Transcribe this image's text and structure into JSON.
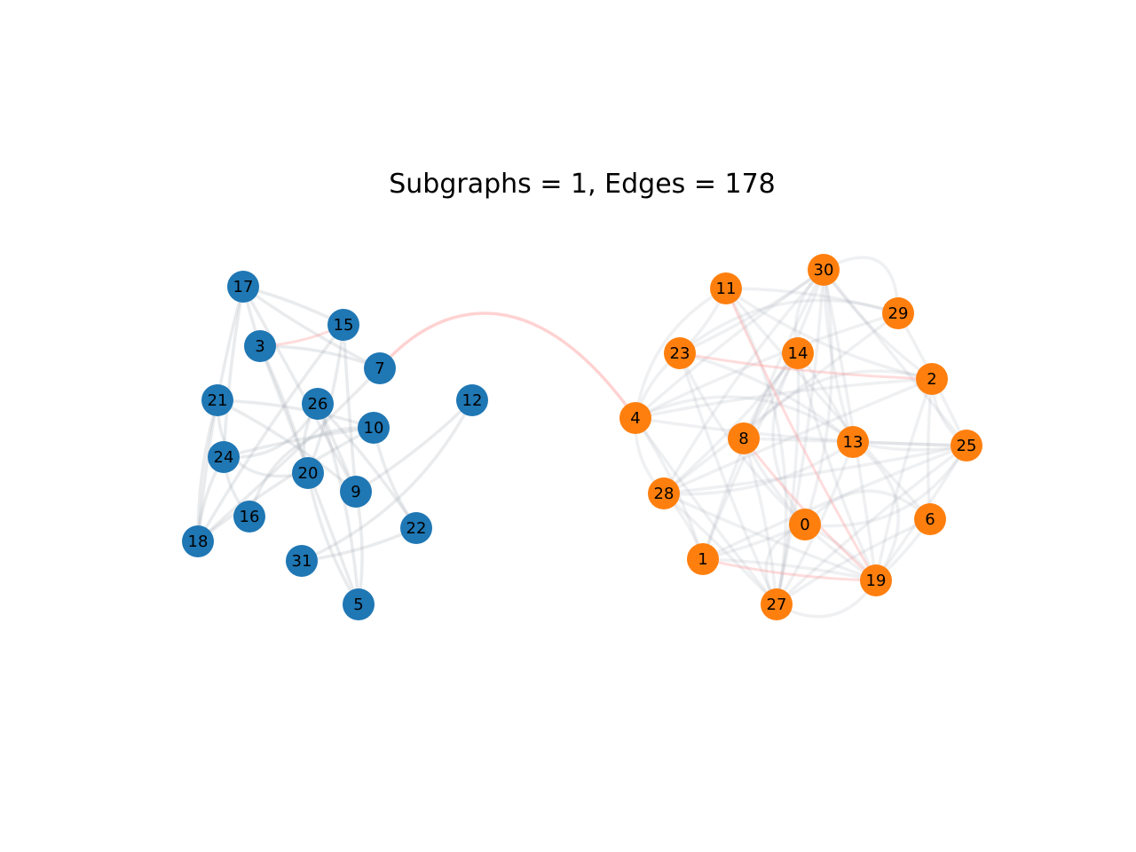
{
  "title": "Subgraphs = 1, Edges = 178",
  "colors": {
    "group_a": "#1f77b4",
    "group_b": "#ff7f0e",
    "edge": "#9aa4ad",
    "bridge_edge": "#ff9c9c",
    "label": "#000000"
  },
  "nodes": [
    {
      "id": "17",
      "group": "a"
    },
    {
      "id": "15",
      "group": "a"
    },
    {
      "id": "3",
      "group": "a"
    },
    {
      "id": "7",
      "group": "a"
    },
    {
      "id": "21",
      "group": "a"
    },
    {
      "id": "26",
      "group": "a"
    },
    {
      "id": "12",
      "group": "a"
    },
    {
      "id": "10",
      "group": "a"
    },
    {
      "id": "24",
      "group": "a"
    },
    {
      "id": "20",
      "group": "a"
    },
    {
      "id": "9",
      "group": "a"
    },
    {
      "id": "16",
      "group": "a"
    },
    {
      "id": "22",
      "group": "a"
    },
    {
      "id": "18",
      "group": "a"
    },
    {
      "id": "31",
      "group": "a"
    },
    {
      "id": "5",
      "group": "a"
    },
    {
      "id": "11",
      "group": "b"
    },
    {
      "id": "30",
      "group": "b"
    },
    {
      "id": "29",
      "group": "b"
    },
    {
      "id": "23",
      "group": "b"
    },
    {
      "id": "14",
      "group": "b"
    },
    {
      "id": "2",
      "group": "b"
    },
    {
      "id": "4",
      "group": "b"
    },
    {
      "id": "8",
      "group": "b"
    },
    {
      "id": "13",
      "group": "b"
    },
    {
      "id": "25",
      "group": "b"
    },
    {
      "id": "28",
      "group": "b"
    },
    {
      "id": "0",
      "group": "b"
    },
    {
      "id": "6",
      "group": "b"
    },
    {
      "id": "1",
      "group": "b"
    },
    {
      "id": "19",
      "group": "b"
    },
    {
      "id": "27",
      "group": "b"
    }
  ],
  "bridge_edges": [
    [
      "7",
      "4"
    ]
  ]
}
